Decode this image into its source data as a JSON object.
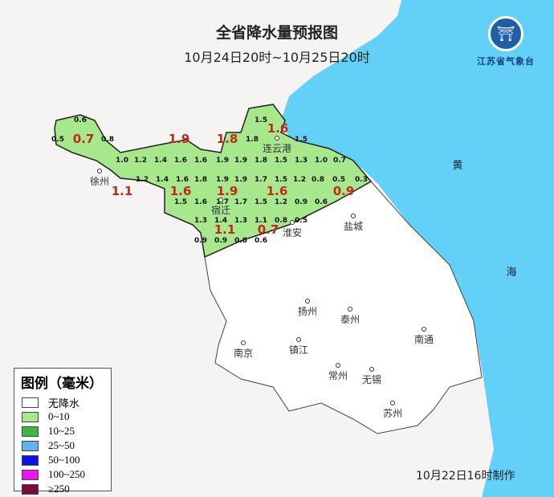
{
  "title": "全省降水量预报图",
  "subtitle": "10月24日20时~10月25日20时",
  "logo": {
    "name": "江苏省气象台",
    "colors": {
      "primary": "#1e5fa8"
    }
  },
  "sea_labels": [
    "黄",
    "海"
  ],
  "colors": {
    "sea": "#62d0f7",
    "land_outside": "#f6f4f2",
    "no_rain": "#ffffff",
    "light_rain": "#a8e88c"
  },
  "cities": [
    "连云港",
    "徐州",
    "宿迁",
    "淮安",
    "盐城",
    "扬州",
    "泰州",
    "南京",
    "镇江",
    "南通",
    "常州",
    "无锡",
    "苏州"
  ],
  "grid_values": [
    "0.6",
    "0.5",
    "0.8",
    "1.5",
    "1.8",
    "1.5",
    "1.0",
    "1.2",
    "1.4",
    "1.6",
    "1.6",
    "1.9",
    "1.9",
    "1.8",
    "1.5",
    "1.3",
    "1.0",
    "0.7",
    "1.2",
    "1.4",
    "1.6",
    "1.8",
    "1.9",
    "1.9",
    "1.7",
    "1.5",
    "1.2",
    "0.8",
    "0.5",
    "0.3",
    "1.5",
    "1.6",
    "1.7",
    "1.7",
    "1.5",
    "1.2",
    "0.9",
    "0.6",
    "1.3",
    "1.4",
    "1.3",
    "1.1",
    "0.8",
    "0.5",
    "0.9",
    "0.9",
    "0.8",
    "0.6"
  ],
  "county_values": [
    "0.7",
    "1.9",
    "1.8",
    "1.6",
    "1.1",
    "1.6",
    "1.9",
    "1.6",
    "0.9",
    "1.1",
    "0.7"
  ],
  "legend": {
    "title": "图例（毫米）",
    "items": [
      {
        "label": "无降水",
        "color": "#ffffff"
      },
      {
        "label": "0~10",
        "color": "#a8e88c"
      },
      {
        "label": "10~25",
        "color": "#3cb83c"
      },
      {
        "label": "25~50",
        "color": "#5fb4f0"
      },
      {
        "label": "50~100",
        "color": "#0a14e6"
      },
      {
        "label": "100~250",
        "color": "#f014f0"
      },
      {
        "label": "≥250",
        "color": "#7a0a3c"
      }
    ]
  },
  "footer": "10月22日16时制作"
}
